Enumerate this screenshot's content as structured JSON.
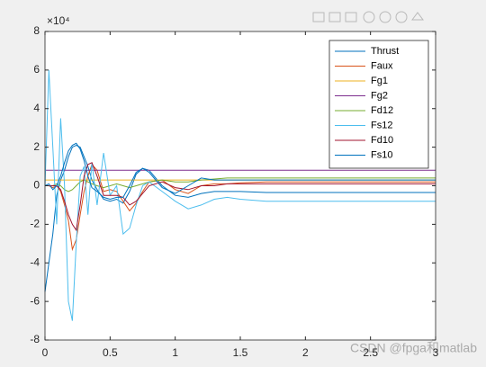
{
  "chart_data": {
    "type": "line",
    "exponent_label": "×10⁴",
    "watermark": "CSDN @fpga和matlab",
    "x": [
      0,
      0.03,
      0.06,
      0.09,
      0.12,
      0.15,
      0.18,
      0.21,
      0.24,
      0.27,
      0.3,
      0.33,
      0.36,
      0.4,
      0.45,
      0.5,
      0.55,
      0.6,
      0.65,
      0.7,
      0.75,
      0.8,
      0.9,
      1.0,
      1.1,
      1.2,
      1.3,
      1.4,
      1.5,
      1.7,
      2.0,
      2.5,
      3.0
    ],
    "series": [
      {
        "name": "Thrust",
        "color": "#0072BD",
        "values": [
          -5.5,
          -4,
          -2.5,
          -0.5,
          0.3,
          0.8,
          1.5,
          2,
          2.1,
          2,
          1.5,
          1,
          0.3,
          -0.2,
          -0.7,
          -0.8,
          -0.7,
          -0.9,
          -0.3,
          0.6,
          0.9,
          0.8,
          0,
          -0.5,
          -0.6,
          -0.4,
          -0.3,
          -0.3,
          -0.3,
          -0.35,
          -0.35,
          -0.35,
          -0.35
        ]
      },
      {
        "name": "Faux",
        "color": "#D95319",
        "values": [
          0,
          0,
          -0.1,
          0,
          -0.3,
          -1,
          -1.8,
          -3.3,
          -2.8,
          -1.5,
          -0.3,
          0.5,
          1.1,
          0.8,
          -0.3,
          -0.2,
          -0.3,
          -0.8,
          -1.3,
          -0.9,
          -0.3,
          0.2,
          0.3,
          -0.2,
          -0.4,
          0,
          0.1,
          0.1,
          0.15,
          0.2,
          0.2,
          0.2,
          0.2
        ]
      },
      {
        "name": "Fg1",
        "color": "#EDB120",
        "values": [
          0.3,
          0.3,
          0.3,
          0.3,
          0.3,
          0.3,
          0.3,
          0.3,
          0.3,
          0.3,
          0.3,
          0.3,
          0.3,
          0.3,
          0.3,
          0.3,
          0.3,
          0.3,
          0.3,
          0.3,
          0.3,
          0.3,
          0.3,
          0.3,
          0.3,
          0.3,
          0.3,
          0.3,
          0.3,
          0.3,
          0.3,
          0.3,
          0.3
        ]
      },
      {
        "name": "Fg2",
        "color": "#7E2F8E",
        "values": [
          0.8,
          0.8,
          0.8,
          0.8,
          0.8,
          0.8,
          0.8,
          0.8,
          0.8,
          0.8,
          0.8,
          0.8,
          0.8,
          0.8,
          0.8,
          0.8,
          0.8,
          0.8,
          0.8,
          0.8,
          0.8,
          0.8,
          0.8,
          0.8,
          0.8,
          0.8,
          0.8,
          0.8,
          0.8,
          0.8,
          0.8,
          0.8,
          0.8
        ]
      },
      {
        "name": "Fd12",
        "color": "#77AC30",
        "values": [
          0,
          0,
          0,
          0.1,
          0,
          -0.2,
          -0.3,
          -0.2,
          0,
          0.2,
          0.3,
          0.2,
          0.1,
          0,
          -0.1,
          0,
          0.1,
          0,
          -0.1,
          0,
          0.1,
          0.2,
          0.3,
          0.2,
          0.2,
          0.3,
          0.35,
          0.4,
          0.4,
          0.4,
          0.4,
          0.4,
          0.4
        ]
      },
      {
        "name": "Fs12",
        "color": "#4DBEEE",
        "values": [
          0,
          6,
          2,
          -2,
          3.5,
          0,
          -6,
          -7,
          -3,
          0.5,
          1,
          -1.5,
          1.2,
          -1,
          1.7,
          -0.5,
          0,
          -2.5,
          -2.2,
          -1,
          0,
          0.2,
          -0.3,
          -0.8,
          -1.2,
          -1,
          -0.7,
          -0.6,
          -0.7,
          -0.8,
          -0.8,
          -0.8,
          -0.8
        ]
      },
      {
        "name": "Fd10",
        "color": "#A2142F",
        "values": [
          0,
          0,
          0,
          0,
          -0.2,
          -0.8,
          -1.5,
          -2,
          -2.3,
          -1,
          0.5,
          1.1,
          1.2,
          0.5,
          -0.5,
          -0.5,
          -0.5,
          -0.6,
          -1,
          -0.8,
          -0.4,
          0,
          0.2,
          -0.1,
          -0.2,
          0,
          0,
          0.1,
          0.1,
          0.1,
          0.1,
          0.1,
          0.1
        ]
      },
      {
        "name": "Fs10",
        "color": "#0072BD",
        "values": [
          0,
          0.1,
          -0.2,
          0,
          0.5,
          1.2,
          1.8,
          2.1,
          2.2,
          1.9,
          1.3,
          0.5,
          -0.1,
          -0.3,
          -0.6,
          -0.7,
          -0.6,
          -0.6,
          0,
          0.7,
          0.9,
          0.7,
          -0.1,
          -0.4,
          0,
          0.4,
          0.3,
          0.3,
          0.3,
          0.3,
          0.3,
          0.3,
          0.3
        ]
      }
    ],
    "xlim": [
      0,
      3
    ],
    "xticks": [
      0,
      0.5,
      1,
      1.5,
      2,
      2.5,
      3
    ],
    "ylim": [
      -8,
      8
    ],
    "yticks": [
      -8,
      -6,
      -4,
      -2,
      0,
      2,
      4,
      6,
      8
    ],
    "legend": "top-right"
  }
}
